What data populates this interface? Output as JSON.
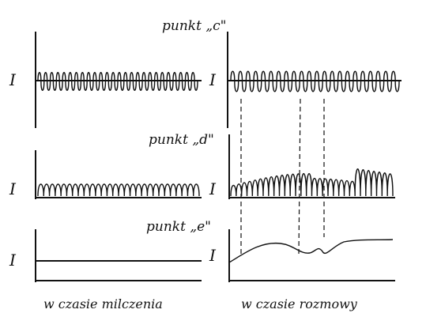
{
  "labels": {
    "point_c": "punkt „c\"",
    "point_d": "punkt „d\"",
    "point_e": "punkt „e\""
  },
  "axis_labels": [
    "I",
    "I",
    "I",
    "I",
    "I",
    "I"
  ],
  "captions": {
    "silence": "w czasie milczenia",
    "speech": "w czasie rozmowy"
  }
}
